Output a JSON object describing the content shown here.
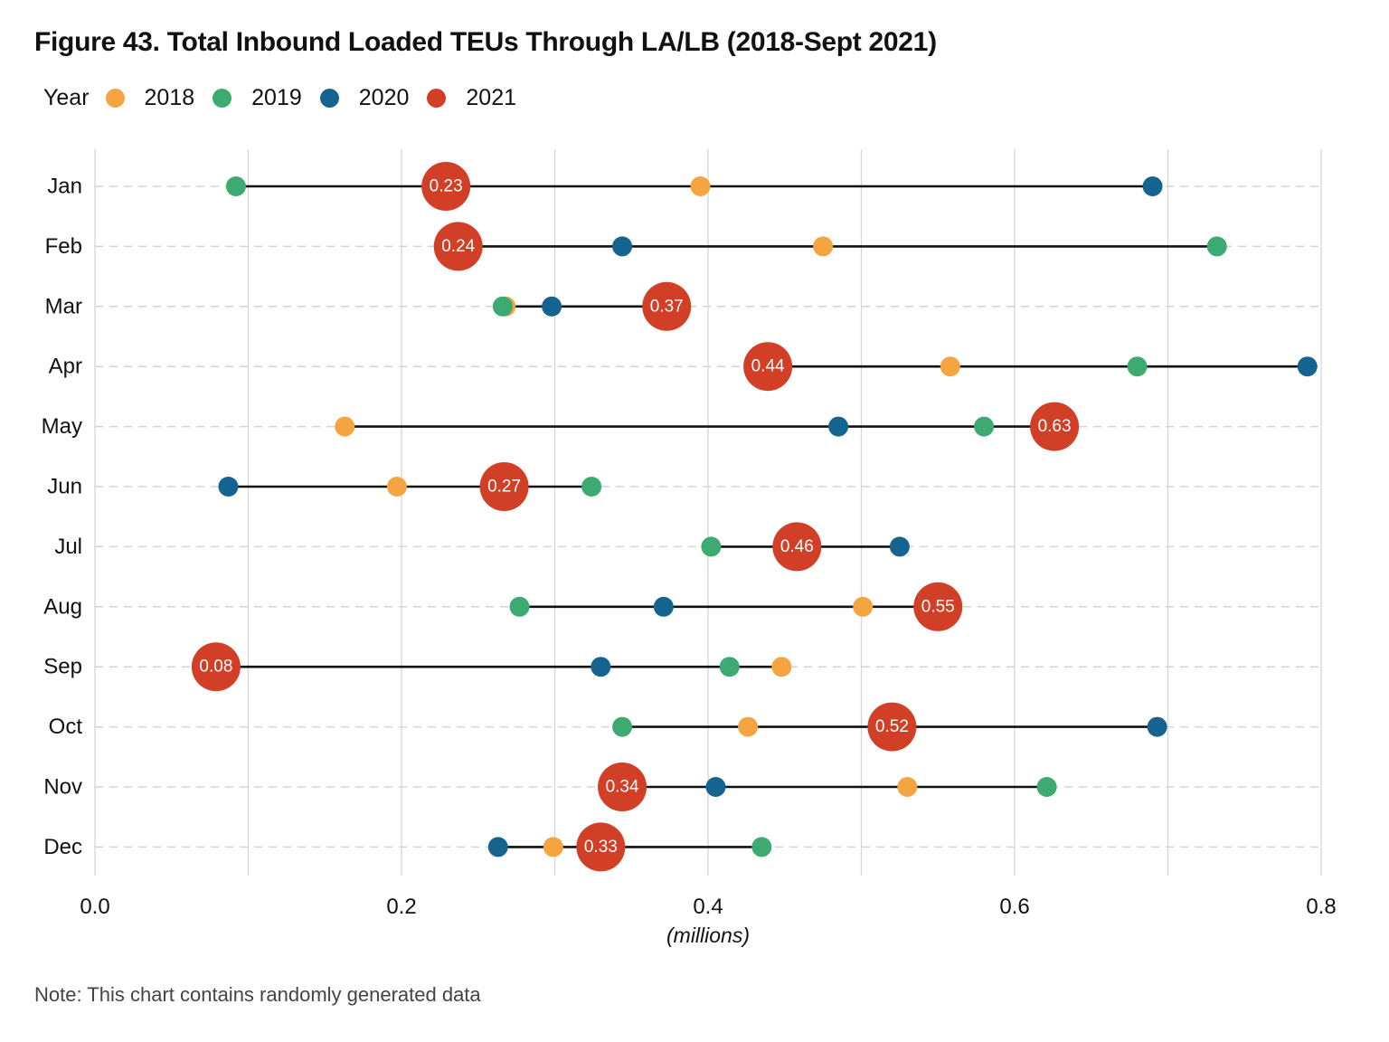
{
  "chart_data": {
    "type": "scatter",
    "title": "Figure 43. Total Inbound Loaded TEUs Through LA/LB (2018-Sept 2021)",
    "xlabel": "(millions)",
    "ylabel": "",
    "xlim": [
      0,
      0.8
    ],
    "xticks": [
      "0.0",
      "0.2",
      "0.4",
      "0.6",
      "0.8"
    ],
    "grid": true,
    "legend": {
      "title": "Year",
      "position": "top-left"
    },
    "categories": [
      "Jan",
      "Feb",
      "Mar",
      "Apr",
      "May",
      "Jun",
      "Jul",
      "Aug",
      "Sep",
      "Oct",
      "Nov",
      "Dec"
    ],
    "series": [
      {
        "name": "2018",
        "color": "#F5A442",
        "values": [
          0.395,
          0.475,
          0.268,
          0.558,
          0.163,
          0.197,
          null,
          0.501,
          0.448,
          0.426,
          0.53,
          0.299
        ]
      },
      {
        "name": "2019",
        "color": "#3DAA72",
        "values": [
          0.092,
          0.732,
          0.266,
          0.68,
          0.58,
          0.324,
          0.402,
          0.277,
          0.414,
          0.344,
          0.621,
          0.435
        ]
      },
      {
        "name": "2020",
        "color": "#15648F",
        "values": [
          0.69,
          0.344,
          0.298,
          0.791,
          0.485,
          0.087,
          0.525,
          0.371,
          0.33,
          0.693,
          0.405,
          0.263
        ]
      },
      {
        "name": "2021",
        "color": "#D13F26",
        "values": [
          0.229,
          0.237,
          0.373,
          0.439,
          0.626,
          0.267,
          0.458,
          0.55,
          0.079,
          0.52,
          0.344,
          0.33
        ],
        "labels": [
          "0.23",
          "0.24",
          "0.37",
          "0.44",
          "0.63",
          "0.27",
          "0.46",
          "0.55",
          "0.08",
          "0.52",
          "0.34",
          "0.33"
        ]
      }
    ],
    "note": "Note: This chart contains randomly generated data"
  }
}
